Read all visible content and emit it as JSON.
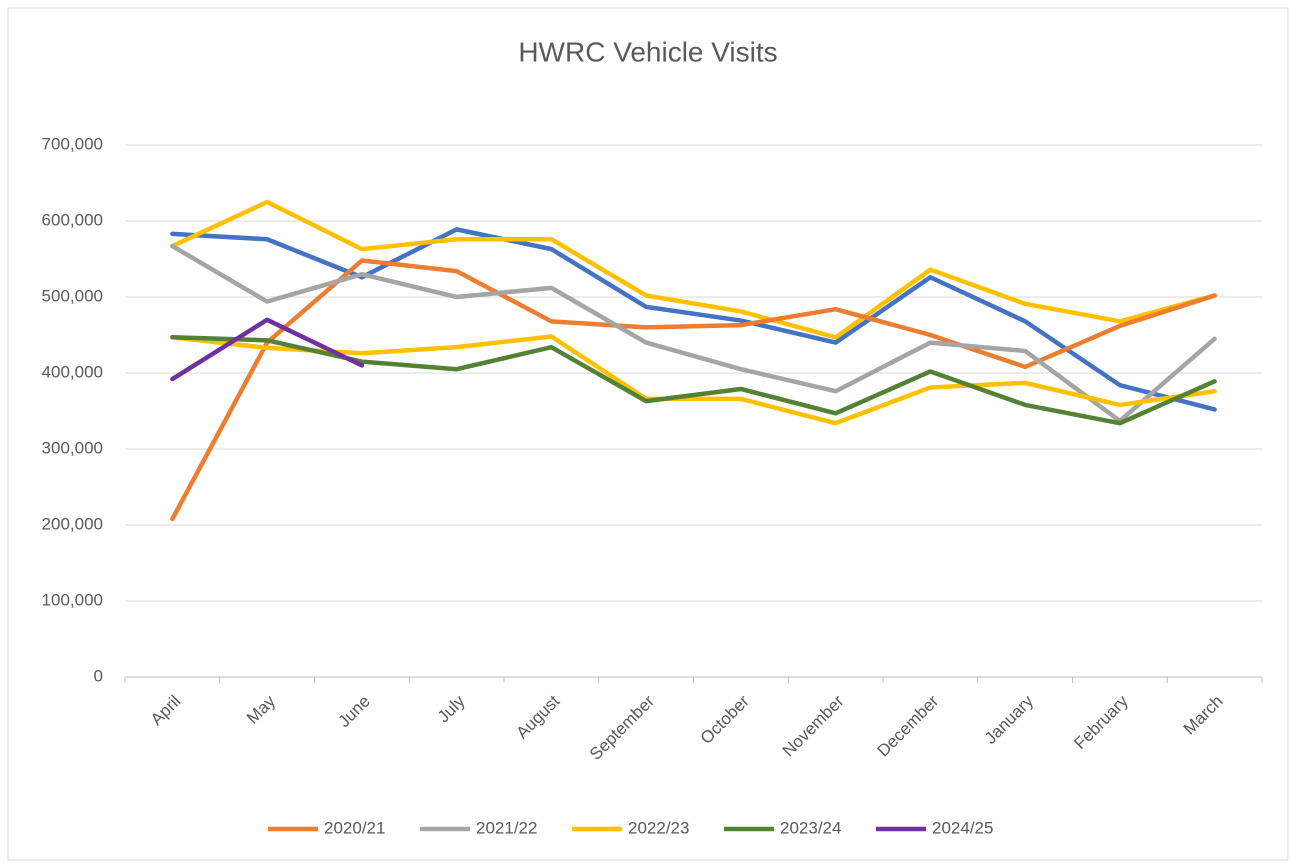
{
  "chart_data": {
    "type": "line",
    "title": "HWRC Vehicle Visits",
    "categories": [
      "April",
      "May",
      "June",
      "July",
      "August",
      "September",
      "October",
      "November",
      "December",
      "January",
      "February",
      "March"
    ],
    "ylim": [
      0,
      700000
    ],
    "yticks": [
      0,
      {
        "value": 100000,
        "label": "100,000"
      },
      {
        "value": 200000,
        "label": "200,000"
      },
      {
        "value": 300000,
        "label": "300,000"
      },
      {
        "value": 400000,
        "label": "400,000"
      },
      {
        "value": 500000,
        "label": "500,000"
      },
      {
        "value": 600000,
        "label": "600,000"
      },
      {
        "value": 700000,
        "label": "700,000"
      }
    ],
    "grid": true,
    "legend": "bottom",
    "series": [
      {
        "color": "#4472c4",
        "values": [
          583000,
          576000,
          526000,
          589000,
          563000,
          487000,
          469000,
          440000,
          526000,
          468000,
          384000,
          352000
        ]
      },
      {
        "color": "#ffc000",
        "values": [
          567000,
          625000,
          563000,
          576000,
          576000,
          502000,
          481000,
          447000,
          536000,
          491000,
          468000,
          502000
        ]
      },
      {
        "name": "2020/21",
        "color": "#ed7d31",
        "values": [
          208000,
          440000,
          548000,
          534000,
          468000,
          460000,
          463000,
          484000,
          450000,
          408000,
          462000,
          502000
        ]
      },
      {
        "name": "2021/22",
        "color": "#a5a5a5",
        "values": [
          567000,
          494000,
          530000,
          500000,
          512000,
          440000,
          405000,
          376000,
          440000,
          429000,
          337000,
          445000
        ]
      },
      {
        "name": "2022/23",
        "color": "#ffc000",
        "values": [
          447000,
          433000,
          426000,
          434000,
          448000,
          366000,
          366000,
          334000,
          381000,
          387000,
          358000,
          376000
        ]
      },
      {
        "name": "2023/24",
        "color": "#548235",
        "values": [
          447000,
          443000,
          415000,
          405000,
          434000,
          363000,
          379000,
          347000,
          402000,
          358000,
          334000,
          389000
        ]
      },
      {
        "name": "2024/25",
        "color": "#7030a0",
        "values": [
          392000,
          470000,
          410000,
          null,
          null,
          null,
          null,
          null,
          null,
          null,
          null,
          null
        ]
      }
    ]
  }
}
